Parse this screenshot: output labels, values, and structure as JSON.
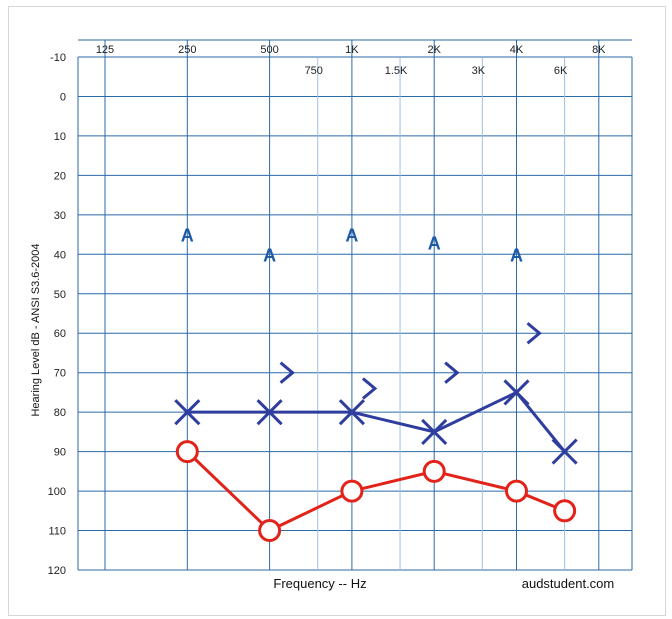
{
  "chart_data": {
    "type": "scatter",
    "title": "",
    "xlabel": "Frequency -- Hz",
    "ylabel": "Hearing Level dB - ANSI S3.6-2004",
    "credit": "audstudent.com",
    "y_ticks": [
      "-10",
      "0",
      "10",
      "20",
      "30",
      "40",
      "50",
      "60",
      "70",
      "80",
      "90",
      "100",
      "110",
      "120"
    ],
    "y_range": [
      -10,
      120
    ],
    "y_inverted": true,
    "x_scale": "log",
    "x_ticks_major": [
      {
        "hz": 125,
        "label": "125"
      },
      {
        "hz": 250,
        "label": "250"
      },
      {
        "hz": 500,
        "label": "500"
      },
      {
        "hz": 1000,
        "label": "1K"
      },
      {
        "hz": 2000,
        "label": "2K"
      },
      {
        "hz": 4000,
        "label": "4K"
      },
      {
        "hz": 8000,
        "label": "8K"
      }
    ],
    "x_ticks_minor": [
      {
        "hz": 750,
        "label": "750"
      },
      {
        "hz": 1500,
        "label": "1.5K"
      },
      {
        "hz": 3000,
        "label": "3K"
      },
      {
        "hz": 6000,
        "label": "6K"
      }
    ],
    "grid": true,
    "series": [
      {
        "symbol": "X",
        "color": "#2e3d9e",
        "connected": true,
        "points": [
          [
            250,
            80
          ],
          [
            500,
            80
          ],
          [
            1000,
            80
          ],
          [
            2000,
            85
          ],
          [
            4000,
            75
          ],
          [
            6000,
            90
          ]
        ]
      },
      {
        "symbol": "O",
        "color": "#e2231a",
        "connected": true,
        "points": [
          [
            250,
            90
          ],
          [
            500,
            110
          ],
          [
            1000,
            100
          ],
          [
            2000,
            95
          ],
          [
            4000,
            100
          ],
          [
            6000,
            105
          ]
        ]
      },
      {
        "symbol": ">",
        "color": "#2e3d9e",
        "connected": false,
        "points": [
          [
            500,
            70
          ],
          [
            1000,
            74
          ],
          [
            2000,
            70
          ],
          [
            4000,
            60
          ]
        ]
      },
      {
        "symbol": "A",
        "color": "#1f5aa6",
        "connected": false,
        "points": [
          [
            250,
            35
          ],
          [
            500,
            40
          ],
          [
            1000,
            35
          ],
          [
            2000,
            37
          ],
          [
            4000,
            40
          ]
        ]
      }
    ]
  },
  "colors": {
    "grid": "#2b6aa8",
    "grid_minor": "#9ec0e0"
  }
}
